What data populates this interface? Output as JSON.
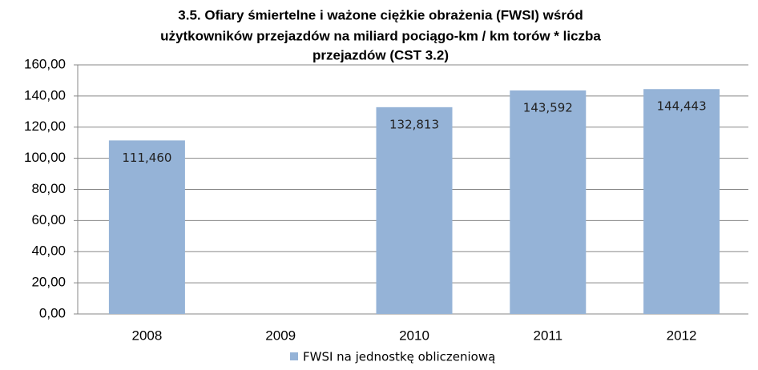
{
  "chart_data": {
    "type": "bar",
    "title": [
      "3.5. Ofiary śmiertelne i ważone ciężkie obrażenia (FWSI) wśród",
      "użytkowników przejazdów na miliard pociągo-km / km torów * liczba",
      "przejazdów (CST 3.2)"
    ],
    "categories": [
      "2008",
      "2009",
      "2010",
      "2011",
      "2012"
    ],
    "series": [
      {
        "name": "FWSI na jednostkę obliczeniową",
        "color": "#95b3d7",
        "values": [
          111.46,
          null,
          132.813,
          143.592,
          144.443
        ],
        "value_labels": [
          "111,460",
          null,
          "132,813",
          "143,592",
          "144,443"
        ]
      }
    ],
    "ylim": [
      0,
      160
    ],
    "yticks": [
      {
        "value": 0,
        "label": "0,00"
      },
      {
        "value": 20,
        "label": "20,00"
      },
      {
        "value": 40,
        "label": "40,00"
      },
      {
        "value": 60,
        "label": "60,00"
      },
      {
        "value": 80,
        "label": "80,00"
      },
      {
        "value": 100,
        "label": "100,00"
      },
      {
        "value": 120,
        "label": "120,00"
      },
      {
        "value": 140,
        "label": "140,00"
      },
      {
        "value": 160,
        "label": "160,00"
      }
    ],
    "grid": true,
    "legend": "bottom"
  }
}
